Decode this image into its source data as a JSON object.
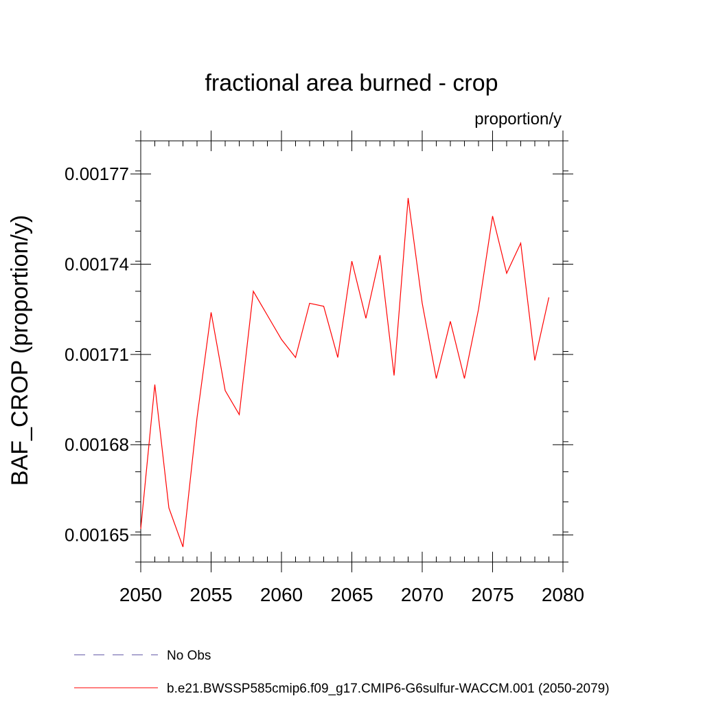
{
  "chart_data": {
    "type": "line",
    "title": "fractional area burned - crop",
    "units": "proportion/y",
    "ylabel": "BAF_CROP  (proportion/y)",
    "xlabel": "",
    "xlim": [
      2050,
      2080
    ],
    "ylim": [
      0.001641,
      0.001781
    ],
    "x_ticks": [
      2050,
      2055,
      2060,
      2065,
      2070,
      2075,
      2080
    ],
    "x_tick_labels": [
      "2050",
      "2055",
      "2060",
      "2065",
      "2070",
      "2075",
      "2080"
    ],
    "y_ticks": [
      0.00165,
      0.00168,
      0.00171,
      0.00174,
      0.00177
    ],
    "y_tick_labels": [
      "0.00165",
      "0.00168",
      "0.00171",
      "0.00174",
      "0.00177"
    ],
    "y_minor_step": 1e-05,
    "x_minor_step": 1,
    "grid": false,
    "legend_position": "bottom-left",
    "series": [
      {
        "name": "No Obs",
        "style": "dashed",
        "color": "#5a4fa2",
        "x": [],
        "values": []
      },
      {
        "name": "b.e21.BWSSP585cmip6.f09_g17.CMIP6-G6sulfur-WACCM.001 (2050-2079)",
        "style": "solid",
        "color": "#ff0000",
        "x": [
          2050,
          2051,
          2052,
          2053,
          2054,
          2055,
          2056,
          2057,
          2058,
          2059,
          2060,
          2061,
          2062,
          2063,
          2064,
          2065,
          2066,
          2067,
          2068,
          2069,
          2070,
          2071,
          2072,
          2073,
          2074,
          2075,
          2076,
          2077,
          2078,
          2079
        ],
        "values": [
          0.001652,
          0.0017,
          0.001659,
          0.001646,
          0.001689,
          0.001724,
          0.001698,
          0.00169,
          0.001731,
          0.001723,
          0.001715,
          0.001709,
          0.001727,
          0.001726,
          0.001709,
          0.001741,
          0.001722,
          0.001743,
          0.001703,
          0.001762,
          0.001727,
          0.001702,
          0.001721,
          0.001702,
          0.001725,
          0.001756,
          0.001737,
          0.001747,
          0.001708,
          0.001729
        ]
      }
    ]
  }
}
